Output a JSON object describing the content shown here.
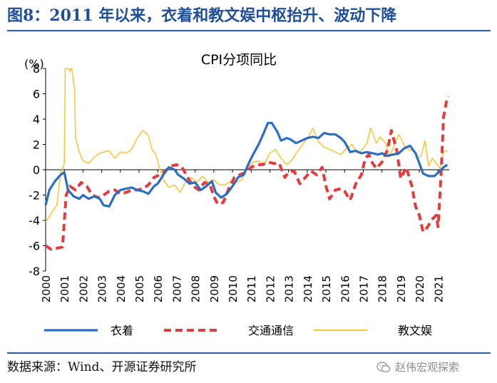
{
  "figure_title": "图8：2011 年以来，衣着和教文娱中枢抬升、波动下降",
  "source": "数据来源：Wind、开源证券研究所",
  "watermark": "赵伟宏观探索",
  "chart_data": {
    "type": "line",
    "title": "CPI分项同比",
    "ylabel": "(%)",
    "xlabel": "",
    "ylim": [
      -8,
      8
    ],
    "yticks": [
      8,
      6,
      4,
      2,
      0,
      -2,
      -4,
      -6,
      -8
    ],
    "xlim": [
      2000,
      2021.6
    ],
    "xticks": [
      "2000",
      "2001",
      "2002",
      "2003",
      "2004",
      "2005",
      "2006",
      "2007",
      "2008",
      "2009",
      "2010",
      "2011",
      "2012",
      "2013",
      "2014",
      "2015",
      "2016",
      "2017",
      "2018",
      "2019",
      "2020",
      "2021"
    ],
    "grid": false,
    "legend": "bottom",
    "series": [
      {
        "name": "衣着",
        "color": "#2b6cc4",
        "style": "solid",
        "points": [
          [
            2000.0,
            -2.8
          ],
          [
            2000.2,
            -1.6
          ],
          [
            2000.5,
            -0.9
          ],
          [
            2000.8,
            -0.4
          ],
          [
            2001.0,
            -0.2
          ],
          [
            2001.2,
            -1.6
          ],
          [
            2001.5,
            -2.1
          ],
          [
            2001.8,
            -2.3
          ],
          [
            2002.0,
            -2.0
          ],
          [
            2002.3,
            -2.3
          ],
          [
            2002.6,
            -2.1
          ],
          [
            2002.9,
            -2.3
          ],
          [
            2003.1,
            -2.8
          ],
          [
            2003.4,
            -2.9
          ],
          [
            2003.7,
            -2.0
          ],
          [
            2004.0,
            -1.6
          ],
          [
            2004.3,
            -1.5
          ],
          [
            2004.6,
            -1.4
          ],
          [
            2004.9,
            -1.6
          ],
          [
            2005.2,
            -1.7
          ],
          [
            2005.5,
            -1.9
          ],
          [
            2005.8,
            -1.3
          ],
          [
            2006.0,
            -1.1
          ],
          [
            2006.3,
            -0.4
          ],
          [
            2006.6,
            0.2
          ],
          [
            2006.9,
            0.0
          ],
          [
            2007.1,
            -0.4
          ],
          [
            2007.4,
            -0.7
          ],
          [
            2007.7,
            -1.1
          ],
          [
            2008.0,
            -1.0
          ],
          [
            2008.3,
            -1.6
          ],
          [
            2008.6,
            -1.3
          ],
          [
            2008.9,
            -0.9
          ],
          [
            2009.1,
            -1.8
          ],
          [
            2009.4,
            -2.2
          ],
          [
            2009.7,
            -1.9
          ],
          [
            2010.0,
            -1.3
          ],
          [
            2010.3,
            -0.6
          ],
          [
            2010.6,
            -0.4
          ],
          [
            2010.9,
            0.6
          ],
          [
            2011.1,
            1.2
          ],
          [
            2011.4,
            2.0
          ],
          [
            2011.7,
            3.0
          ],
          [
            2011.9,
            3.7
          ],
          [
            2012.1,
            3.7
          ],
          [
            2012.4,
            3.0
          ],
          [
            2012.6,
            2.3
          ],
          [
            2012.9,
            2.5
          ],
          [
            2013.1,
            2.4
          ],
          [
            2013.4,
            2.1
          ],
          [
            2013.7,
            2.3
          ],
          [
            2014.0,
            2.5
          ],
          [
            2014.3,
            2.6
          ],
          [
            2014.6,
            2.5
          ],
          [
            2014.9,
            2.9
          ],
          [
            2015.2,
            2.8
          ],
          [
            2015.5,
            2.8
          ],
          [
            2015.8,
            2.5
          ],
          [
            2016.0,
            2.2
          ],
          [
            2016.3,
            1.4
          ],
          [
            2016.6,
            1.5
          ],
          [
            2016.9,
            1.3
          ],
          [
            2017.2,
            1.4
          ],
          [
            2017.5,
            1.3
          ],
          [
            2017.8,
            1.2
          ],
          [
            2018.0,
            1.3
          ],
          [
            2018.3,
            1.1
          ],
          [
            2018.6,
            1.2
          ],
          [
            2018.9,
            1.3
          ],
          [
            2019.2,
            1.7
          ],
          [
            2019.5,
            1.9
          ],
          [
            2019.8,
            1.3
          ],
          [
            2020.0,
            0.5
          ],
          [
            2020.2,
            -0.3
          ],
          [
            2020.5,
            -0.5
          ],
          [
            2020.8,
            -0.5
          ],
          [
            2021.1,
            -0.1
          ],
          [
            2021.3,
            0.2
          ],
          [
            2021.5,
            0.4
          ]
        ]
      },
      {
        "name": "交通通信",
        "color": "#e43c3c",
        "style": "dashed",
        "points": [
          [
            2000.0,
            -6.0
          ],
          [
            2000.3,
            -6.3
          ],
          [
            2000.6,
            -6.2
          ],
          [
            2000.9,
            -6.1
          ],
          [
            2001.1,
            -2.0
          ],
          [
            2001.3,
            -1.3
          ],
          [
            2001.6,
            -1.6
          ],
          [
            2001.9,
            -1.0
          ],
          [
            2002.2,
            -1.3
          ],
          [
            2002.5,
            -2.0
          ],
          [
            2002.8,
            -2.2
          ],
          [
            2003.1,
            -2.0
          ],
          [
            2003.4,
            -1.7
          ],
          [
            2003.7,
            -1.6
          ],
          [
            2004.0,
            -1.9
          ],
          [
            2004.3,
            -1.8
          ],
          [
            2004.6,
            -1.6
          ],
          [
            2004.9,
            -1.6
          ],
          [
            2005.2,
            -1.5
          ],
          [
            2005.5,
            -1.2
          ],
          [
            2005.8,
            -0.6
          ],
          [
            2006.1,
            -0.4
          ],
          [
            2006.4,
            -0.1
          ],
          [
            2006.7,
            0.3
          ],
          [
            2007.0,
            0.4
          ],
          [
            2007.3,
            0.2
          ],
          [
            2007.6,
            -0.6
          ],
          [
            2007.9,
            -1.3
          ],
          [
            2008.2,
            -1.6
          ],
          [
            2008.5,
            -1.0
          ],
          [
            2008.8,
            -1.2
          ],
          [
            2009.0,
            -2.1
          ],
          [
            2009.2,
            -2.7
          ],
          [
            2009.5,
            -2.6
          ],
          [
            2009.8,
            -1.5
          ],
          [
            2010.1,
            -0.6
          ],
          [
            2010.4,
            -0.4
          ],
          [
            2010.7,
            -0.2
          ],
          [
            2011.0,
            0.2
          ],
          [
            2011.3,
            0.4
          ],
          [
            2011.6,
            0.4
          ],
          [
            2011.9,
            0.6
          ],
          [
            2012.2,
            0.5
          ],
          [
            2012.5,
            0.5
          ],
          [
            2012.8,
            -0.6
          ],
          [
            2013.0,
            -0.2
          ],
          [
            2013.3,
            -0.1
          ],
          [
            2013.6,
            -1.1
          ],
          [
            2013.9,
            -0.6
          ],
          [
            2014.2,
            -0.1
          ],
          [
            2014.5,
            -0.4
          ],
          [
            2014.8,
            0.2
          ],
          [
            2015.0,
            -1.3
          ],
          [
            2015.2,
            -2.3
          ],
          [
            2015.5,
            -1.6
          ],
          [
            2015.8,
            -1.5
          ],
          [
            2016.0,
            -1.7
          ],
          [
            2016.3,
            -2.4
          ],
          [
            2016.6,
            -1.1
          ],
          [
            2016.9,
            -0.4
          ],
          [
            2017.1,
            0.9
          ],
          [
            2017.3,
            1.2
          ],
          [
            2017.5,
            0.5
          ],
          [
            2017.7,
            0.1
          ],
          [
            2018.0,
            0.6
          ],
          [
            2018.3,
            1.6
          ],
          [
            2018.5,
            3.1
          ],
          [
            2018.8,
            1.5
          ],
          [
            2019.0,
            -0.7
          ],
          [
            2019.3,
            0.2
          ],
          [
            2019.6,
            -1.3
          ],
          [
            2019.8,
            -2.9
          ],
          [
            2020.0,
            -3.6
          ],
          [
            2020.2,
            -4.9
          ],
          [
            2020.4,
            -4.6
          ],
          [
            2020.7,
            -3.9
          ],
          [
            2020.9,
            -3.6
          ],
          [
            2021.0,
            -4.5
          ],
          [
            2021.15,
            -0.8
          ],
          [
            2021.3,
            4.2
          ],
          [
            2021.45,
            5.4
          ],
          [
            2021.55,
            5.8
          ]
        ]
      },
      {
        "name": "教文娱",
        "color": "#f5c842",
        "style": "solid",
        "points": [
          [
            2000.0,
            -4.1
          ],
          [
            2000.2,
            -3.7
          ],
          [
            2000.4,
            -3.2
          ],
          [
            2000.6,
            -2.8
          ],
          [
            2000.8,
            -0.3
          ],
          [
            2001.0,
            0.5
          ],
          [
            2001.05,
            8.0
          ],
          [
            2001.2,
            8.0
          ],
          [
            2001.3,
            7.8
          ],
          [
            2001.35,
            8.0
          ],
          [
            2001.4,
            8.0
          ],
          [
            2001.55,
            6.3
          ],
          [
            2001.6,
            2.5
          ],
          [
            2001.8,
            1.4
          ],
          [
            2002.0,
            0.7
          ],
          [
            2002.3,
            0.5
          ],
          [
            2002.6,
            1.0
          ],
          [
            2002.9,
            1.3
          ],
          [
            2003.1,
            1.4
          ],
          [
            2003.4,
            1.5
          ],
          [
            2003.7,
            0.9
          ],
          [
            2004.0,
            1.4
          ],
          [
            2004.3,
            1.3
          ],
          [
            2004.6,
            1.6
          ],
          [
            2004.9,
            2.5
          ],
          [
            2005.2,
            3.1
          ],
          [
            2005.5,
            2.7
          ],
          [
            2005.7,
            1.6
          ],
          [
            2005.9,
            1.2
          ],
          [
            2006.1,
            0.1
          ],
          [
            2006.3,
            -0.8
          ],
          [
            2006.6,
            -1.4
          ],
          [
            2006.9,
            -1.2
          ],
          [
            2007.2,
            -1.8
          ],
          [
            2007.5,
            -0.9
          ],
          [
            2007.8,
            -0.6
          ],
          [
            2008.1,
            -1.0
          ],
          [
            2008.4,
            -0.5
          ],
          [
            2008.7,
            -1.0
          ],
          [
            2009.0,
            -0.8
          ],
          [
            2009.3,
            -1.2
          ],
          [
            2009.6,
            -1.2
          ],
          [
            2009.9,
            -0.9
          ],
          [
            2010.2,
            -1.0
          ],
          [
            2010.5,
            -0.8
          ],
          [
            2010.8,
            0.2
          ],
          [
            2011.1,
            0.6
          ],
          [
            2011.4,
            0.7
          ],
          [
            2011.7,
            0.4
          ],
          [
            2012.0,
            1.3
          ],
          [
            2012.3,
            1.6
          ],
          [
            2012.6,
            0.9
          ],
          [
            2012.9,
            0.4
          ],
          [
            2013.2,
            0.8
          ],
          [
            2013.5,
            1.5
          ],
          [
            2013.8,
            2.1
          ],
          [
            2014.1,
            2.7
          ],
          [
            2014.3,
            3.3
          ],
          [
            2014.6,
            2.2
          ],
          [
            2014.9,
            1.8
          ],
          [
            2015.2,
            1.6
          ],
          [
            2015.5,
            1.4
          ],
          [
            2015.8,
            1.2
          ],
          [
            2016.1,
            1.7
          ],
          [
            2016.4,
            2.0
          ],
          [
            2016.7,
            1.3
          ],
          [
            2016.9,
            1.5
          ],
          [
            2017.2,
            2.1
          ],
          [
            2017.4,
            3.3
          ],
          [
            2017.7,
            2.1
          ],
          [
            2017.9,
            2.6
          ],
          [
            2018.2,
            2.1
          ],
          [
            2018.4,
            1.0
          ],
          [
            2018.7,
            2.1
          ],
          [
            2018.9,
            2.8
          ],
          [
            2019.2,
            1.9
          ],
          [
            2019.4,
            1.6
          ],
          [
            2019.7,
            1.5
          ],
          [
            2019.9,
            0.9
          ],
          [
            2020.1,
            1.1
          ],
          [
            2020.3,
            2.3
          ],
          [
            2020.5,
            0.3
          ],
          [
            2020.7,
            0.9
          ],
          [
            2020.9,
            0.5
          ],
          [
            2021.1,
            0.1
          ],
          [
            2021.3,
            1.4
          ],
          [
            2021.5,
            1.5
          ]
        ]
      }
    ]
  }
}
